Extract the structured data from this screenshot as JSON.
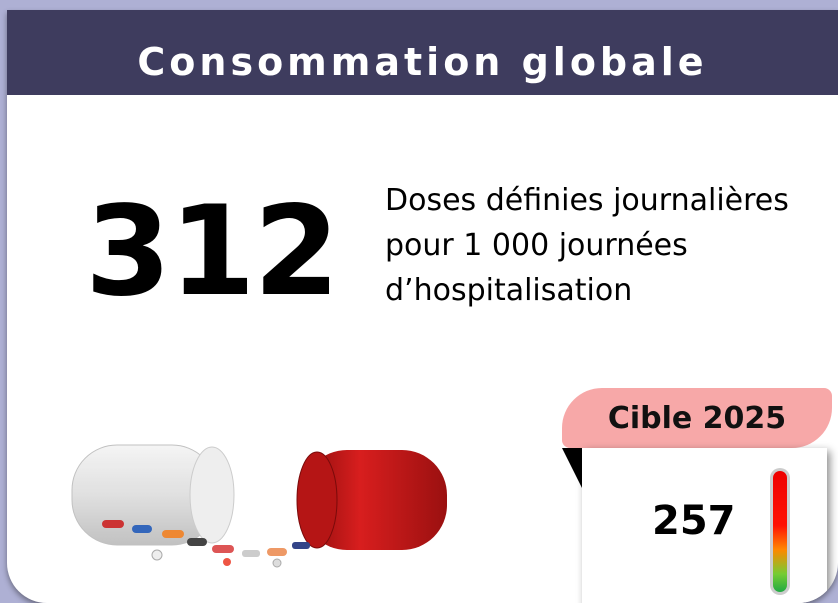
{
  "header": {
    "title": "Consommation globale"
  },
  "main": {
    "value": 312,
    "description": [
      "Doses définies journalières",
      "pour 1 000 journées",
      "d’hospitalisation"
    ]
  },
  "target": {
    "label": "Cible 2025",
    "value": 257
  }
}
